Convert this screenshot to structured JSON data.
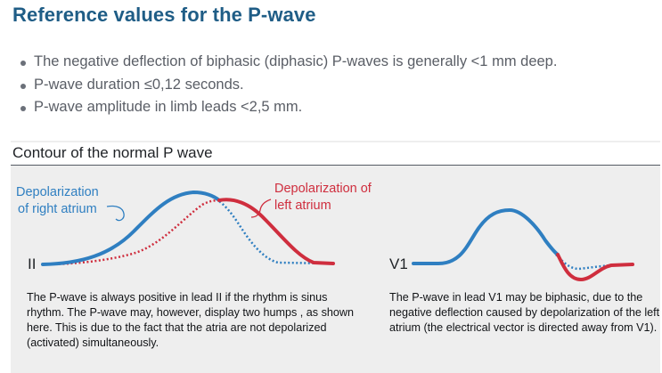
{
  "heading": "Reference values for the P-wave",
  "bullets": [
    "The negative deflection of biphasic (diphasic) P-waves is generally <1 mm deep.",
    "P-wave duration ≤0,12 seconds.",
    "P-wave amplitude in limb leads <2,5 mm."
  ],
  "figure": {
    "title": "Contour of the normal P wave",
    "left_panel": {
      "lead": "II",
      "label_right_atrium": [
        "Depolarization",
        "of right atrium"
      ],
      "label_left_atrium": [
        "Depolarization of",
        "left atrium"
      ],
      "caption": "The P-wave is always positive in lead II if the rhythm is sinus rhythm. The P-wave may, however, display two humps , as shown here. This is due to the fact that the atria are not depolarized (activated) simultaneously."
    },
    "right_panel": {
      "lead": "V1",
      "caption": "The P-wave in lead V1 may be biphasic, due to the negative deflection caused by depolarization of the left atrium (the electrical vector is directed away from V1)."
    },
    "colors": {
      "right_atrium": "#2f7fc1",
      "left_atrium": "#cf2e3e",
      "heading": "#1f5d86",
      "figure_background": "#eeeeee"
    }
  }
}
